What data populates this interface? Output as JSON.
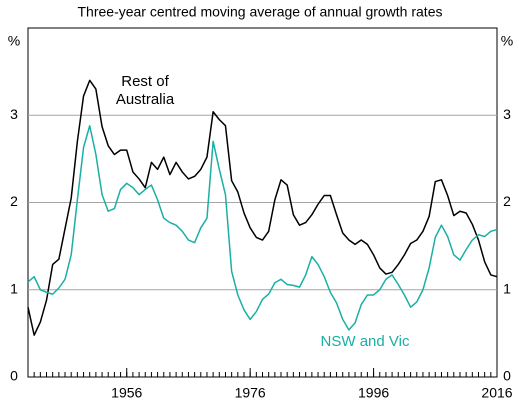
{
  "chart_data": {
    "type": "line",
    "subtitle": "Three-year centred moving average of annual growth rates",
    "y_label": "%",
    "y2_label": "%",
    "x": [
      1940,
      1941,
      1942,
      1943,
      1944,
      1945,
      1946,
      1947,
      1948,
      1949,
      1950,
      1951,
      1952,
      1953,
      1954,
      1955,
      1956,
      1957,
      1958,
      1959,
      1960,
      1961,
      1962,
      1963,
      1964,
      1965,
      1966,
      1967,
      1968,
      1969,
      1970,
      1971,
      1972,
      1973,
      1974,
      1975,
      1976,
      1977,
      1978,
      1979,
      1980,
      1981,
      1982,
      1983,
      1984,
      1985,
      1986,
      1987,
      1988,
      1989,
      1990,
      1991,
      1992,
      1993,
      1994,
      1995,
      1996,
      1997,
      1998,
      1999,
      2000,
      2001,
      2002,
      2003,
      2004,
      2005,
      2006,
      2007,
      2008,
      2009,
      2010,
      2011,
      2012,
      2013,
      2014,
      2015,
      2016
    ],
    "series": [
      {
        "name": "Rest of Australia",
        "color": "#000000",
        "values": [
          0.8,
          0.48,
          0.63,
          0.88,
          1.29,
          1.35,
          1.7,
          2.05,
          2.7,
          3.22,
          3.4,
          3.3,
          2.87,
          2.65,
          2.55,
          2.6,
          2.6,
          2.35,
          2.27,
          2.17,
          2.46,
          2.38,
          2.52,
          2.32,
          2.46,
          2.35,
          2.27,
          2.3,
          2.38,
          2.52,
          3.04,
          2.95,
          2.88,
          2.25,
          2.12,
          1.88,
          1.71,
          1.6,
          1.57,
          1.67,
          2.03,
          2.26,
          2.2,
          1.86,
          1.74,
          1.77,
          1.86,
          1.98,
          2.08,
          2.08,
          1.86,
          1.65,
          1.57,
          1.52,
          1.57,
          1.52,
          1.4,
          1.25,
          1.18,
          1.2,
          1.29,
          1.4,
          1.53,
          1.57,
          1.67,
          1.84,
          2.24,
          2.26,
          2.08,
          1.85,
          1.9,
          1.88,
          1.75,
          1.57,
          1.32,
          1.17,
          1.15
        ]
      },
      {
        "name": "NSW and Vic",
        "color": "#1aafa5",
        "values": [
          1.09,
          1.15,
          1.0,
          0.97,
          0.95,
          1.02,
          1.12,
          1.4,
          2.03,
          2.63,
          2.88,
          2.55,
          2.09,
          1.9,
          1.93,
          2.15,
          2.22,
          2.17,
          2.09,
          2.15,
          2.2,
          2.03,
          1.82,
          1.77,
          1.74,
          1.67,
          1.57,
          1.54,
          1.71,
          1.82,
          2.7,
          2.38,
          2.09,
          1.21,
          0.94,
          0.77,
          0.66,
          0.75,
          0.89,
          0.95,
          1.08,
          1.12,
          1.06,
          1.05,
          1.03,
          1.17,
          1.38,
          1.29,
          1.15,
          0.97,
          0.85,
          0.66,
          0.54,
          0.62,
          0.83,
          0.94,
          0.94,
          1.0,
          1.12,
          1.17,
          1.06,
          0.94,
          0.8,
          0.86,
          1.0,
          1.25,
          1.6,
          1.74,
          1.61,
          1.4,
          1.34,
          1.46,
          1.57,
          1.63,
          1.61,
          1.67,
          1.69
        ]
      }
    ],
    "xlim": [
      1940,
      2016
    ],
    "xticks": [
      1956,
      1976,
      1996,
      2016
    ],
    "ylim": [
      0,
      4
    ],
    "yticks": [
      0,
      1,
      2,
      3
    ],
    "y2lim": [
      0,
      4
    ],
    "y2ticks": [
      0,
      1,
      2,
      3
    ],
    "grid": true
  }
}
